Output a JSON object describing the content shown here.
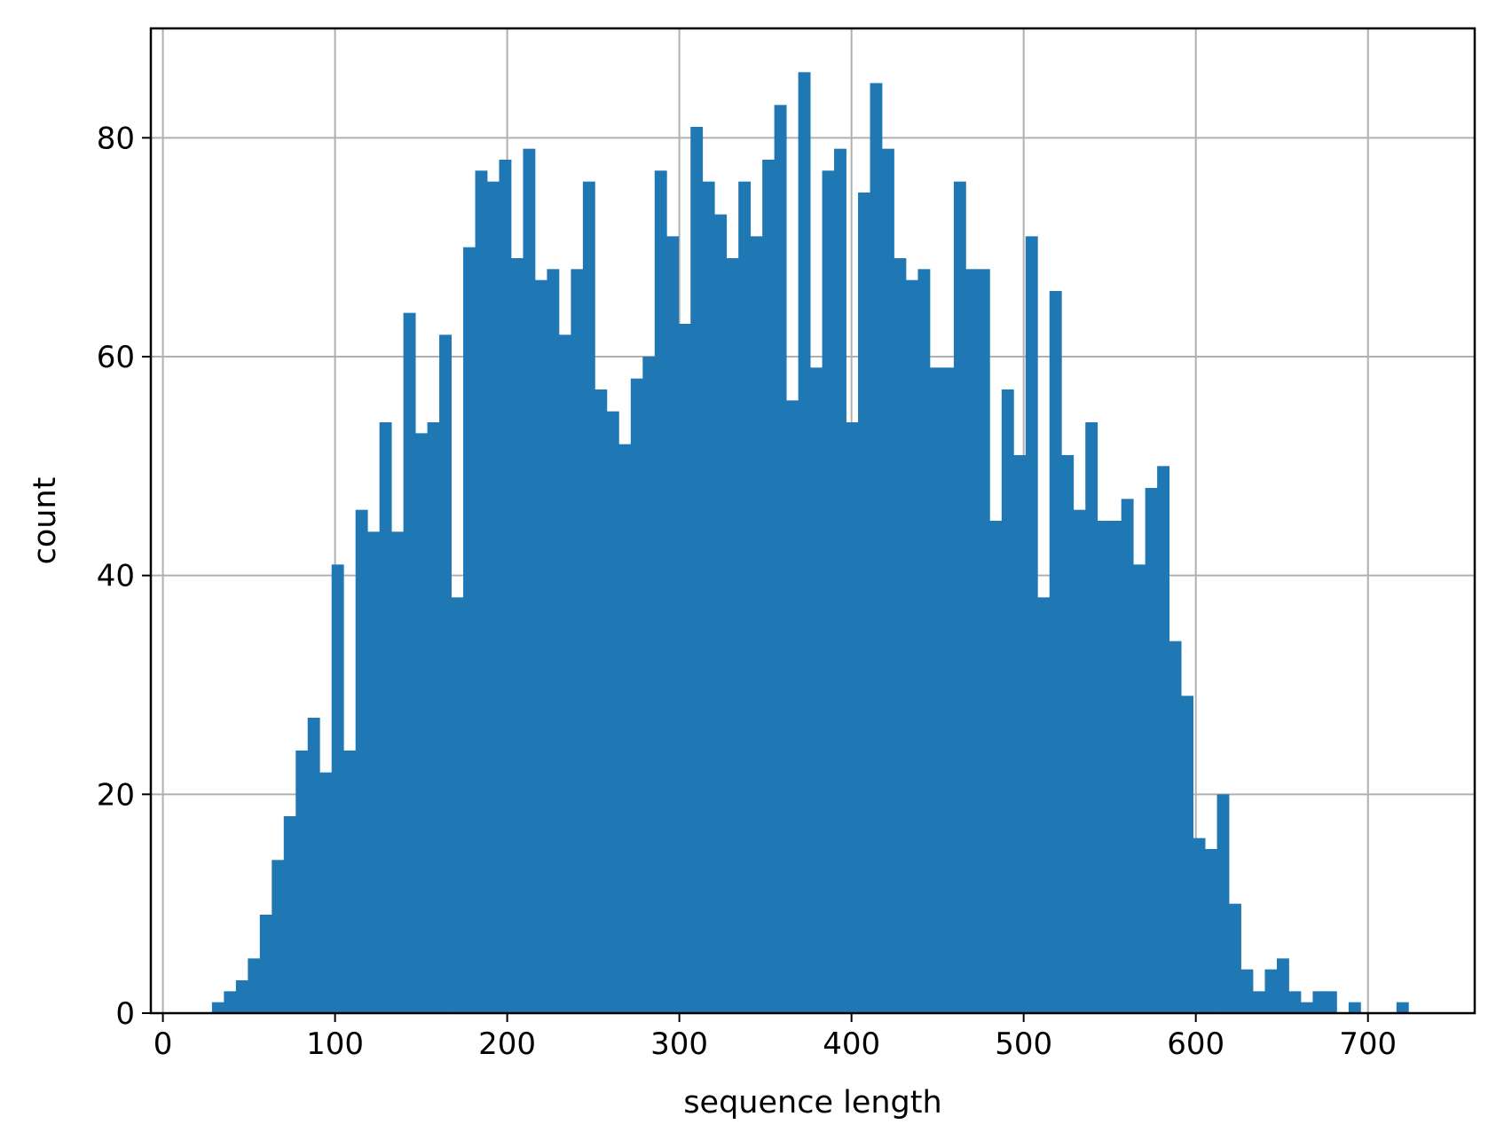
{
  "chart_data": {
    "type": "bar",
    "subtype": "histogram",
    "title": "",
    "xlabel": "sequence length",
    "ylabel": "count",
    "xlim": [
      -7,
      762
    ],
    "ylim": [
      0,
      90
    ],
    "xticks": [
      0,
      100,
      200,
      300,
      400,
      500,
      600,
      700
    ],
    "yticks": [
      0,
      20,
      40,
      60,
      80
    ],
    "grid": true,
    "bar_color": "#1f77b4",
    "grid_color": "#b0b0b0",
    "bin_start": 28.5,
    "bin_width": 6.95,
    "values": [
      1,
      2,
      3,
      5,
      9,
      14,
      18,
      24,
      27,
      22,
      41,
      24,
      46,
      44,
      54,
      44,
      64,
      53,
      54,
      62,
      38,
      70,
      77,
      76,
      78,
      69,
      79,
      67,
      68,
      62,
      68,
      76,
      57,
      55,
      52,
      58,
      60,
      77,
      71,
      63,
      81,
      76,
      73,
      69,
      76,
      71,
      78,
      83,
      56,
      86,
      59,
      77,
      79,
      54,
      75,
      85,
      79,
      69,
      67,
      68,
      59,
      59,
      76,
      68,
      68,
      45,
      57,
      51,
      71,
      38,
      66,
      51,
      46,
      54,
      45,
      45,
      47,
      41,
      48,
      50,
      34,
      29,
      16,
      15,
      20,
      10,
      4,
      2,
      4,
      5,
      2,
      1,
      2,
      2,
      0,
      1,
      0,
      0,
      0,
      1
    ]
  }
}
